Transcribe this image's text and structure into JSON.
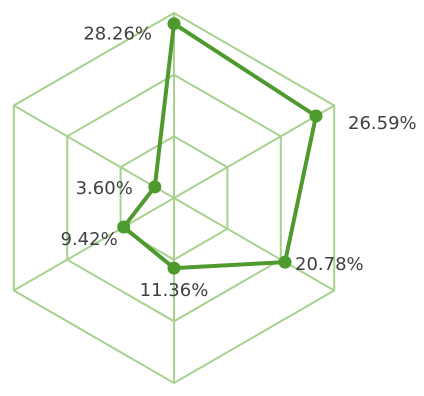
{
  "chart_data": {
    "type": "radar",
    "categories": [
      "",
      "",
      "",
      "",
      "",
      ""
    ],
    "series": [
      {
        "name": "",
        "values": [
          28.26,
          26.59,
          20.78,
          11.36,
          9.42,
          3.6
        ],
        "labels": [
          "28.26%",
          "26.59%",
          "20.78%",
          "11.36%",
          "9.42%",
          "3.60%"
        ],
        "color": "#4e9a2e"
      }
    ],
    "rmax": 30,
    "grid_rings": 3,
    "grid_color": "#a9d18e",
    "legend": "none",
    "title": ""
  }
}
